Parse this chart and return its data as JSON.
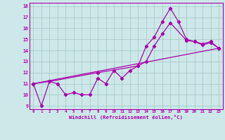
{
  "xlabel": "Windchill (Refroidissement éolien,°C)",
  "background_color": "#cce8e8",
  "line_color": "#aa00aa",
  "grid_color": "#aacccc",
  "xlim": [
    -0.5,
    23.5
  ],
  "ylim": [
    8.7,
    18.3
  ],
  "yticks": [
    9,
    10,
    11,
    12,
    13,
    14,
    15,
    16,
    17,
    18
  ],
  "xticks": [
    0,
    1,
    2,
    3,
    4,
    5,
    6,
    7,
    8,
    9,
    10,
    11,
    12,
    13,
    14,
    15,
    16,
    17,
    18,
    19,
    20,
    21,
    22,
    23
  ],
  "line1_x": [
    0,
    1,
    2,
    3,
    4,
    5,
    6,
    7,
    8,
    9,
    10,
    11,
    12,
    13,
    14,
    15,
    16,
    17,
    18,
    19,
    20,
    21,
    22,
    23
  ],
  "line1_y": [
    11.0,
    9.0,
    11.2,
    11.0,
    10.0,
    10.2,
    10.0,
    10.0,
    11.5,
    11.0,
    12.2,
    11.5,
    12.2,
    12.6,
    14.4,
    15.2,
    16.6,
    17.8,
    16.6,
    15.0,
    14.8,
    14.6,
    14.8,
    14.2
  ],
  "line2_x": [
    0,
    23
  ],
  "line2_y": [
    11.0,
    14.2
  ],
  "line3_x": [
    0,
    2,
    8,
    13,
    14,
    15,
    16,
    17,
    19,
    20,
    21,
    22,
    23
  ],
  "line3_y": [
    11.0,
    11.2,
    12.0,
    12.6,
    13.0,
    14.4,
    15.5,
    16.5,
    14.9,
    14.8,
    14.5,
    14.7,
    14.2
  ]
}
